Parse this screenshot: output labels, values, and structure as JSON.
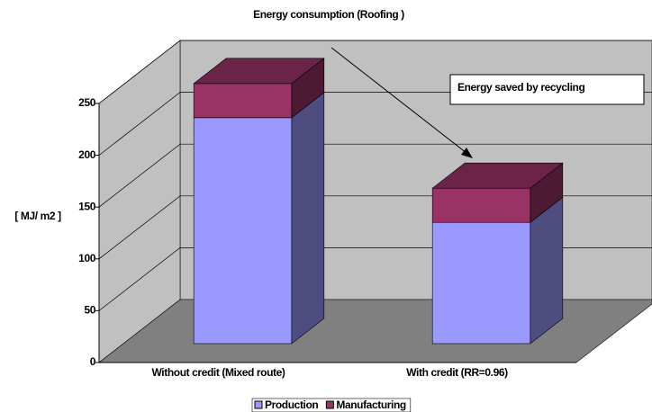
{
  "chart_data": {
    "type": "bar3d",
    "title": "Energy consumption  (Roofing )",
    "y_label": "[ MJ/ m2 ]",
    "annotation": "Energy saved by recycling",
    "categories": [
      "Without credit (Mixed route)",
      "With credit (RR=0.96)"
    ],
    "series": [
      {
        "name": "Production",
        "color": "#9999ff",
        "values": [
          218,
          117
        ]
      },
      {
        "name": "Manufacturing",
        "color": "#993366",
        "values": [
          33,
          33
        ]
      }
    ],
    "stacked": true,
    "ylim": [
      0,
      250
    ],
    "yticks": [
      0,
      50,
      100,
      150,
      200,
      250
    ],
    "grid": true,
    "legend": "bottom"
  }
}
